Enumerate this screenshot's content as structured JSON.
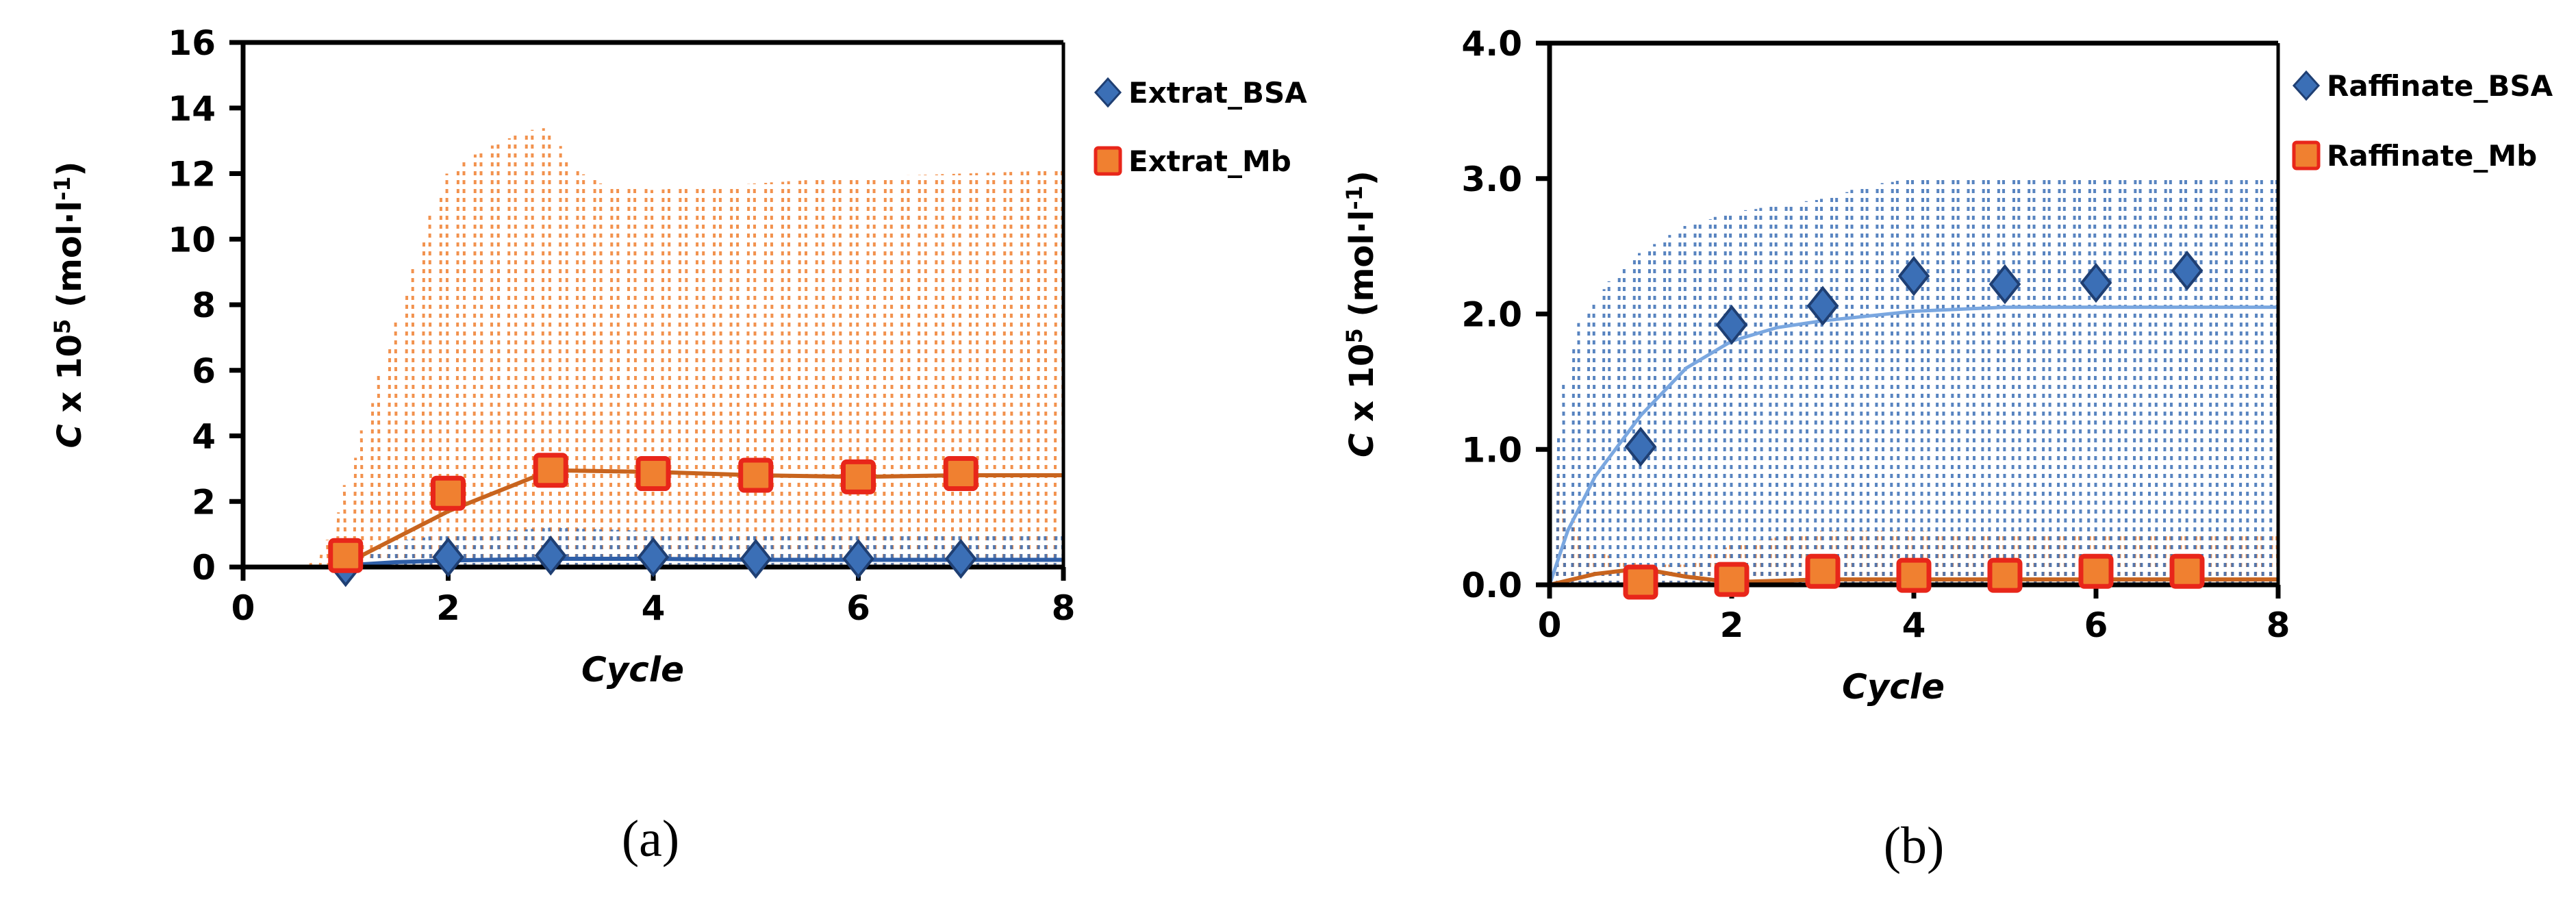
{
  "chart_data": [
    {
      "panel": "a",
      "type": "line",
      "caption": "(a)",
      "xlabel": "Cycle",
      "ylabel_prefix": "C",
      "ylabel_rest": " x 10",
      "ylabel_exp": "5",
      "ylabel_unit": " (mol·l",
      "ylabel_unit_exp": "-1",
      "ylabel_close": ")",
      "xlim": [
        0,
        8
      ],
      "ylim": [
        0,
        16
      ],
      "xticks": [
        0,
        2,
        4,
        6,
        8
      ],
      "xtick_labels": [
        "0",
        "2",
        "4",
        "6",
        "8"
      ],
      "yticks": [
        0,
        2,
        4,
        6,
        8,
        10,
        12,
        14,
        16
      ],
      "ytick_labels": [
        "0",
        "2",
        "4",
        "6",
        "8",
        "10",
        "12",
        "14",
        "16"
      ],
      "grid": false,
      "legend_position": "right-top",
      "series": [
        {
          "name": "Extrat_BSA",
          "marker": "diamond",
          "color": "#3b6fb6",
          "x": [
            1,
            2,
            3,
            4,
            5,
            6,
            7
          ],
          "y": [
            0.0,
            0.3,
            0.35,
            0.3,
            0.25,
            0.25,
            0.25
          ],
          "model_curve": {
            "x": [
              0,
              0.8,
              1,
              1.5,
              2,
              3,
              4,
              5,
              6,
              7,
              8
            ],
            "y": [
              0,
              0,
              0.05,
              0.15,
              0.2,
              0.25,
              0.25,
              0.22,
              0.22,
              0.22,
              0.22
            ]
          },
          "profile_envelope_max": {
            "x": [
              0,
              0.8,
              1,
              1.5,
              2,
              3,
              4,
              5,
              6,
              7,
              8
            ],
            "y": [
              0,
              0,
              0.3,
              0.8,
              1.0,
              1.2,
              1.1,
              1.0,
              1.0,
              1.0,
              1.0
            ]
          }
        },
        {
          "name": "Extrat_Mb",
          "marker": "square",
          "color": "#f08030",
          "edge_color": "#e8261a",
          "x": [
            1,
            2,
            3,
            4,
            5,
            6,
            7
          ],
          "y": [
            0.35,
            2.25,
            2.95,
            2.85,
            2.8,
            2.75,
            2.85
          ],
          "model_curve": {
            "x": [
              0,
              0.8,
              1,
              2,
              3,
              4,
              5,
              6,
              7,
              8
            ],
            "y": [
              0,
              0,
              0.1,
              1.7,
              2.95,
              2.9,
              2.8,
              2.75,
              2.8,
              2.8
            ]
          },
          "profile_envelope_max": {
            "x": [
              0,
              0.6,
              0.8,
              1,
              1.2,
              1.5,
              1.8,
              2,
              2.3,
              2.6,
              2.9,
              3,
              3.2,
              3.5,
              4,
              5,
              6,
              7,
              8
            ],
            "y": [
              0,
              0,
              0.5,
              2.5,
              4.5,
              7.5,
              10.5,
              12,
              12.7,
              13.1,
              13.4,
              13.3,
              12.2,
              11.7,
              11.5,
              11.7,
              11.9,
              12.0,
              12.1
            ]
          }
        }
      ]
    },
    {
      "panel": "b",
      "type": "line",
      "caption": "(b)",
      "xlabel": "Cycle",
      "ylabel_prefix": "C",
      "ylabel_rest": " x 10",
      "ylabel_exp": "5",
      "ylabel_unit": " (mol·l",
      "ylabel_unit_exp": "-1",
      "ylabel_close": ")",
      "xlim": [
        0,
        8
      ],
      "ylim": [
        0,
        4.0
      ],
      "xticks": [
        0,
        2,
        4,
        6,
        8
      ],
      "xtick_labels": [
        "0",
        "2",
        "4",
        "6",
        "8"
      ],
      "yticks": [
        0,
        1,
        2,
        3,
        4
      ],
      "ytick_labels": [
        "0.0",
        "1.0",
        "2.0",
        "3.0",
        "4.0"
      ],
      "grid": false,
      "legend_position": "right-top",
      "series": [
        {
          "name": "Raffinate_BSA",
          "marker": "diamond",
          "color": "#3b6fb6",
          "x": [
            1,
            2,
            3,
            4,
            5,
            6,
            7
          ],
          "y": [
            1.02,
            1.92,
            2.06,
            2.28,
            2.22,
            2.23,
            2.32
          ],
          "model_curve": {
            "x": [
              0,
              0.2,
              0.5,
              1,
              1.5,
              2,
              2.5,
              3,
              4,
              5,
              6,
              7,
              8
            ],
            "y": [
              0,
              0.4,
              0.8,
              1.25,
              1.6,
              1.8,
              1.9,
              1.95,
              2.02,
              2.05,
              2.05,
              2.05,
              2.05
            ]
          },
          "profile_envelope_max": {
            "x": [
              0,
              0.1,
              0.3,
              0.6,
              1,
              1.5,
              2,
              2.5,
              3,
              3.5,
              4,
              5,
              6,
              7,
              8
            ],
            "y": [
              0,
              1.3,
              1.9,
              2.2,
              2.45,
              2.65,
              2.75,
              2.8,
              2.85,
              2.95,
              3.0,
              3.0,
              3.0,
              3.0,
              3.0
            ]
          }
        },
        {
          "name": "Raffinate_Mb",
          "marker": "square",
          "color": "#f08030",
          "edge_color": "#e8261a",
          "x": [
            1,
            2,
            3,
            4,
            5,
            6,
            7
          ],
          "y": [
            0.02,
            0.04,
            0.1,
            0.07,
            0.07,
            0.1,
            0.1
          ],
          "model_curve": {
            "x": [
              0,
              0.5,
              1,
              1.5,
              2,
              3,
              4,
              5,
              6,
              7,
              8
            ],
            "y": [
              0,
              0.08,
              0.12,
              0.06,
              0.02,
              0.04,
              0.04,
              0.04,
              0.04,
              0.04,
              0.04
            ]
          },
          "profile_envelope_max": {
            "x": [
              0,
              0.05,
              0.15,
              0.3,
              0.5,
              1,
              1.5,
              2,
              2.5,
              3,
              4,
              5,
              6,
              7,
              8
            ],
            "y": [
              0,
              0.9,
              0.6,
              0.4,
              0.25,
              0.15,
              0.15,
              0.3,
              0.35,
              0.4,
              0.4,
              0.38,
              0.38,
              0.38,
              0.38
            ]
          }
        }
      ]
    }
  ]
}
